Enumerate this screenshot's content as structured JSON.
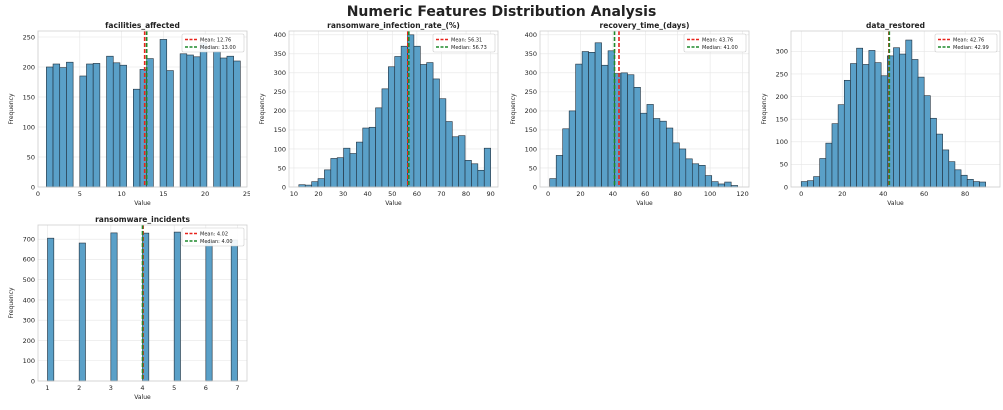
{
  "figure_title": "Numeric Features Distribution Analysis",
  "colors": {
    "bar": "#5aa0c8",
    "bar_edge": "#1f2d3a",
    "mean": "#e8231c",
    "median": "#1f8a2b",
    "grid": "#e6e6e6"
  },
  "chart_data": [
    {
      "type": "bar",
      "title": "facilities_affected",
      "xlabel": "Value",
      "ylabel": "Frequency",
      "xlim": [
        0,
        25
      ],
      "ylim": [
        0,
        260
      ],
      "xticks": [
        0,
        5,
        10,
        15,
        20,
        25
      ],
      "yticks": [
        0,
        50,
        100,
        150,
        200,
        250
      ],
      "bin_width": 0.8,
      "bin_starts": [
        1,
        1.8,
        2.6,
        3.4,
        5,
        5.8,
        6.6,
        8.2,
        9,
        9.8,
        11.4,
        12.2,
        13,
        14.6,
        15.4,
        17,
        17.8,
        18.6,
        19.4,
        21,
        21.8,
        22.6,
        23.4
      ],
      "values": [
        200,
        205,
        199,
        208,
        185,
        205,
        206,
        218,
        207,
        203,
        163,
        196,
        214,
        246,
        194,
        222,
        220,
        217,
        240,
        226,
        215,
        218,
        210
      ],
      "mean": 12.76,
      "median": 13.0,
      "legend": [
        "Mean: 12.76",
        "Median: 13.00"
      ]
    },
    {
      "type": "bar",
      "title": "ransomware_infection_rate_(%)",
      "xlabel": "Value",
      "ylabel": "Frequency",
      "xlim": [
        8,
        93
      ],
      "ylim": [
        0,
        410
      ],
      "xticks": [
        10,
        20,
        30,
        40,
        50,
        60,
        70,
        80,
        90
      ],
      "yticks": [
        0,
        50,
        100,
        150,
        200,
        250,
        300,
        350,
        400
      ],
      "bin_width": 2.6,
      "bin_starts": [
        12,
        14.6,
        17.2,
        19.8,
        22.4,
        25,
        27.6,
        30.2,
        32.8,
        35.4,
        38,
        40.6,
        43.2,
        45.8,
        48.4,
        51,
        53.6,
        56.2,
        58.8,
        61.4,
        64,
        66.6,
        69.2,
        71.8,
        74.4,
        77,
        79.6,
        82.2,
        84.8,
        87.4
      ],
      "values": [
        6,
        5,
        14,
        22,
        45,
        75,
        77,
        102,
        88,
        118,
        155,
        157,
        208,
        258,
        316,
        343,
        370,
        400,
        370,
        322,
        327,
        284,
        232,
        172,
        132,
        135,
        70,
        61,
        44,
        102
      ],
      "mean": 56.31,
      "median": 56.73,
      "legend": [
        "Mean: 56.31",
        "Median: 56.73"
      ]
    },
    {
      "type": "bar",
      "title": "recovery_time_(days)",
      "xlabel": "Value",
      "ylabel": "Frequency",
      "xlim": [
        -5,
        124
      ],
      "ylim": [
        0,
        410
      ],
      "xticks": [
        0,
        20,
        40,
        60,
        80,
        100,
        120
      ],
      "yticks": [
        0,
        50,
        100,
        150,
        200,
        250,
        300,
        350,
        400
      ],
      "bin_width": 4,
      "bin_starts": [
        1,
        5,
        9,
        13,
        17,
        21,
        25,
        29,
        33,
        37,
        41,
        45,
        49,
        53,
        57,
        61,
        65,
        69,
        73,
        77,
        81,
        85,
        89,
        93,
        97,
        101,
        105,
        109,
        113
      ],
      "values": [
        22,
        83,
        153,
        200,
        323,
        356,
        354,
        379,
        320,
        358,
        298,
        300,
        295,
        262,
        194,
        217,
        180,
        173,
        155,
        116,
        100,
        74,
        61,
        57,
        30,
        14,
        8,
        13,
        4
      ],
      "mean": 43.76,
      "median": 41.0,
      "legend": [
        "Mean: 43.76",
        "Median: 41.00"
      ]
    },
    {
      "type": "bar",
      "title": "data_restored",
      "xlabel": "Value",
      "ylabel": "Frequency",
      "xlim": [
        -5,
        97
      ],
      "ylim": [
        0,
        345
      ],
      "xticks": [
        0,
        20,
        40,
        60,
        80
      ],
      "yticks": [
        0,
        50,
        100,
        150,
        200,
        250,
        300
      ],
      "bin_width": 3,
      "bin_starts": [
        0,
        3,
        6,
        9,
        12,
        15,
        18,
        21,
        24,
        27,
        30,
        33,
        36,
        39,
        42,
        45,
        48,
        51,
        54,
        57,
        60,
        63,
        66,
        69,
        72,
        75,
        78,
        81,
        84,
        87
      ],
      "values": [
        12,
        14,
        23,
        63,
        97,
        140,
        182,
        236,
        273,
        307,
        271,
        302,
        275,
        246,
        290,
        308,
        294,
        325,
        282,
        243,
        202,
        152,
        117,
        82,
        56,
        38,
        26,
        17,
        12,
        11
      ],
      "mean": 42.76,
      "median": 42.99,
      "legend": [
        "Mean: 42.76",
        "Median: 42.99"
      ]
    },
    {
      "type": "bar",
      "title": "ransomware_incidents",
      "xlabel": "Value",
      "ylabel": "Frequency",
      "xlim": [
        0.7,
        7.3
      ],
      "ylim": [
        0,
        770
      ],
      "xticks": [
        1,
        2,
        3,
        4,
        5,
        6,
        7
      ],
      "yticks": [
        0,
        100,
        200,
        300,
        400,
        500,
        600,
        700
      ],
      "bin_width": 0.2,
      "bin_starts": [
        1,
        2,
        3,
        4,
        5,
        6,
        6.8
      ],
      "values": [
        705,
        681,
        731,
        730,
        735,
        688,
        696
      ],
      "mean": 4.02,
      "median": 4.0,
      "legend": [
        "Mean: 4.02",
        "Median: 4.00"
      ]
    }
  ]
}
